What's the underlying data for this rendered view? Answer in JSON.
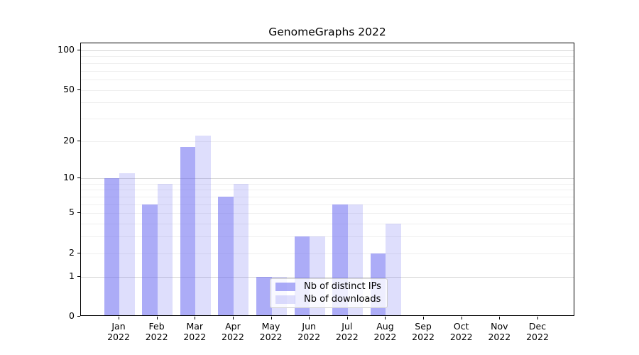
{
  "chart_data": {
    "type": "bar",
    "title": "GenomeGraphs 2022",
    "year": "2022",
    "categories": [
      "Jan",
      "Feb",
      "Mar",
      "Apr",
      "May",
      "Jun",
      "Jul",
      "Aug",
      "Sep",
      "Oct",
      "Nov",
      "Dec"
    ],
    "series": [
      {
        "name": "Nb of distinct IPs",
        "color": "rgba(103,103,241,0.55)",
        "values": [
          10,
          6,
          18,
          7,
          1,
          3,
          6,
          2,
          0,
          0,
          0,
          0
        ]
      },
      {
        "name": "Nb of downloads",
        "color": "rgba(103,103,241,0.22)",
        "values": [
          11,
          9,
          22,
          9,
          1,
          3,
          6,
          4,
          0,
          0,
          0,
          0
        ]
      }
    ],
    "xlabel": "",
    "ylabel": "",
    "y_axis": {
      "scale": "log1p",
      "ticks": [
        0,
        1,
        2,
        5,
        10,
        20,
        50,
        100
      ],
      "range": [
        0,
        110
      ],
      "grid_major": [
        1,
        10,
        100
      ],
      "grid_minor": [
        2,
        3,
        4,
        5,
        6,
        7,
        8,
        9,
        20,
        30,
        40,
        50,
        60,
        70,
        80,
        90
      ]
    },
    "legend": {
      "position": "lower-center",
      "entries": [
        "Nb of distinct IPs",
        "Nb of downloads"
      ]
    },
    "colors": {
      "grid_major": "#d6d6d6",
      "grid_minor": "#efefef",
      "spine": "#000000",
      "text": "#000000",
      "legend_border": "#cccccc",
      "legend_bg": "rgba(255,255,255,0.8)"
    }
  }
}
